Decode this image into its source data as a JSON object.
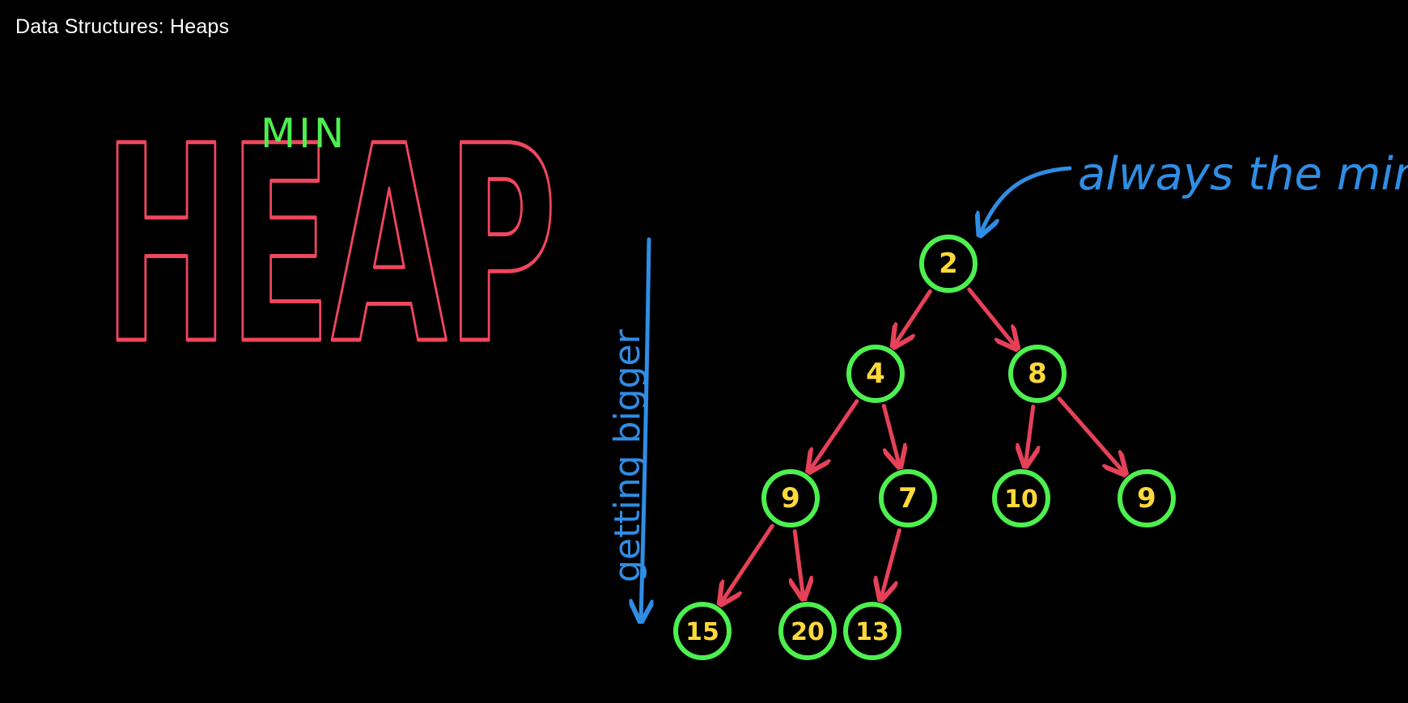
{
  "video": {
    "title": "Data Structures: Heaps"
  },
  "heading": {
    "qualifier": "MIN",
    "word": "HEAP"
  },
  "annotations": {
    "root_note": "always the min",
    "side_note": "getting bigger"
  },
  "heap": {
    "levels": [
      [
        2
      ],
      [
        4,
        8
      ],
      [
        9,
        7,
        10,
        9
      ],
      [
        15,
        20,
        13
      ]
    ]
  },
  "colors": {
    "heading": "#f0465e",
    "qualifier": "#4df04f",
    "annotation": "#2f8de4",
    "node_ring": "#4df04f",
    "node_value": "#ffd93a",
    "edge": "#e64158"
  }
}
